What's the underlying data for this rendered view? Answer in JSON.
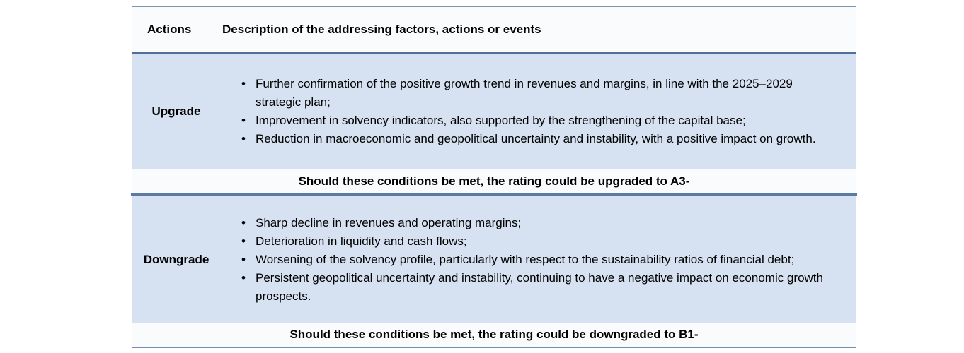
{
  "header": {
    "actions_label": "Actions",
    "description_label": "Description of the addressing factors, actions or events"
  },
  "upgrade": {
    "label": "Upgrade",
    "bullets": [
      "Further confirmation of the positive growth trend in revenues and margins, in line with the 2025–2029 strategic plan;",
      "Improvement in solvency indicators, also supported by the strengthening of the capital base;",
      "Reduction in macroeconomic and geopolitical uncertainty and instability, with a positive impact on growth."
    ],
    "condition": "Should these conditions be met, the rating could be upgraded to A3-"
  },
  "downgrade": {
    "label": "Downgrade",
    "bullets": [
      "Sharp decline in revenues and operating margins;",
      "Deterioration in liquidity and cash flows;",
      "Worsening of the solvency profile, particularly with respect to the sustainability ratios of financial debt;",
      "Persistent geopolitical uncertainty and instability, continuing to have a negative impact on economic growth prospects."
    ],
    "condition": "Should these conditions be met, the rating could be downgraded to B1-"
  },
  "colors": {
    "section_fill": "#d6e2f1",
    "rule": "#5b7aa0",
    "header_fill": "#f9fbfd"
  }
}
